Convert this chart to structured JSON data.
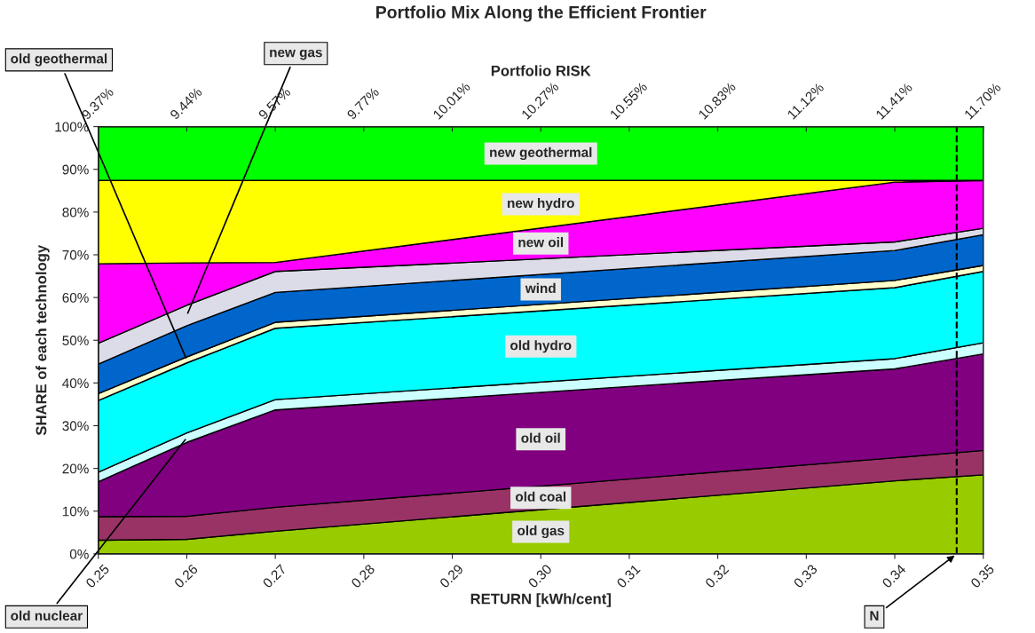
{
  "chart_data": {
    "type": "area",
    "title": "Portfolio Mix Along the Efficient Frontier",
    "xlabel": "RETURN [kWh/cent]",
    "ylabel": "SHARE of each technology",
    "x2label": "Portfolio RISK",
    "stacked": true,
    "legend": false,
    "x": [
      0.25,
      0.26,
      0.27,
      0.34,
      0.35
    ],
    "xlim": [
      0.25,
      0.35
    ],
    "xticks": [
      {
        "value": 0.25,
        "label": "0.25"
      },
      {
        "value": 0.26,
        "label": "0.26"
      },
      {
        "value": 0.27,
        "label": "0.27"
      },
      {
        "value": 0.28,
        "label": "0.28"
      },
      {
        "value": 0.29,
        "label": "0.29"
      },
      {
        "value": 0.3,
        "label": "0.30"
      },
      {
        "value": 0.31,
        "label": "0.31"
      },
      {
        "value": 0.32,
        "label": "0.32"
      },
      {
        "value": 0.33,
        "label": "0.33"
      },
      {
        "value": 0.34,
        "label": "0.34"
      },
      {
        "value": 0.35,
        "label": "0.35"
      }
    ],
    "annotations": [
      "9.37%",
      "9.44%",
      "9.57%",
      "9.77%",
      "10.01%",
      "10.27%",
      "10.55%",
      "10.83%",
      "11.12%",
      "11.41%",
      "11.70%"
    ],
    "ylim": [
      0,
      100
    ],
    "yticks": [
      {
        "value": 0,
        "label": "0%"
      },
      {
        "value": 10,
        "label": "10%"
      },
      {
        "value": 20,
        "label": "20%"
      },
      {
        "value": 30,
        "label": "30%"
      },
      {
        "value": 40,
        "label": "40%"
      },
      {
        "value": 50,
        "label": "50%"
      },
      {
        "value": 60,
        "label": "60%"
      },
      {
        "value": 70,
        "label": "70%"
      },
      {
        "value": 80,
        "label": "80%"
      },
      {
        "value": 90,
        "label": "90%"
      },
      {
        "value": 100,
        "label": "100%"
      }
    ],
    "series": [
      {
        "name": "old gas",
        "color": "#99cc00",
        "values": [
          3.2,
          3.4,
          5.3,
          17.1,
          18.5
        ]
      },
      {
        "name": "old coal",
        "color": "#993366",
        "values": [
          5.5,
          5.4,
          5.6,
          5.4,
          5.7
        ]
      },
      {
        "name": "old oil",
        "color": "#800080",
        "values": [
          8.2,
          17.3,
          22.8,
          20.8,
          22.6
        ]
      },
      {
        "name": "old nuclear",
        "color": "#ccffff",
        "values": [
          2.2,
          2.2,
          2.4,
          2.4,
          2.6
        ]
      },
      {
        "name": "old hydro",
        "color": "#00ffff",
        "values": [
          16.8,
          16.4,
          16.7,
          16.6,
          16.7
        ]
      },
      {
        "name": "old geothermal",
        "color": "#ffffcc",
        "values": [
          1.6,
          1.4,
          1.4,
          1.7,
          1.4
        ]
      },
      {
        "name": "wind",
        "color": "#0066cc",
        "values": [
          6.9,
          7.3,
          7.0,
          7.0,
          7.2
        ]
      },
      {
        "name": "new gas",
        "color": "#dcdce8",
        "values": [
          4.9,
          4.8,
          4.9,
          2.0,
          1.5
        ]
      },
      {
        "name": "new oil",
        "color": "#ff00ff",
        "values": [
          18.6,
          9.9,
          2.1,
          14.0,
          11.2
        ]
      },
      {
        "name": "new hydro",
        "color": "#ffff00",
        "values": [
          19.5,
          19.3,
          19.2,
          0.4,
          0.0
        ]
      },
      {
        "name": "new geothermal",
        "color": "#00ff00",
        "values": [
          12.6,
          12.6,
          12.6,
          12.6,
          12.6
        ]
      }
    ],
    "ref_lines": [
      {
        "axis": "x",
        "value": 0.347,
        "label": "N",
        "line_style": "dashed",
        "color": "#000000"
      }
    ]
  }
}
